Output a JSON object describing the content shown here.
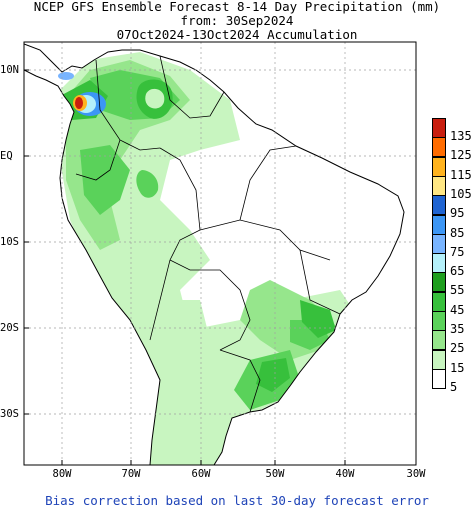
{
  "title": {
    "line1": "NCEP GFS Ensemble Forecast 8-14 Day Precipitation (mm)",
    "line2": "from: 30Sep2024",
    "line3": "07Oct2024-13Oct2024 Accumulation"
  },
  "latitude_labels": [
    "10N",
    "EQ",
    "10S",
    "20S",
    "30S"
  ],
  "longitude_labels": [
    "80W",
    "70W",
    "60W",
    "50W",
    "40W",
    "30W"
  ],
  "legend": {
    "labels": [
      "135",
      "125",
      "115",
      "105",
      "95",
      "85",
      "75",
      "65",
      "55",
      "45",
      "35",
      "25",
      "15",
      "5"
    ],
    "colors": [
      "#c81e0f",
      "#ff6c00",
      "#ffb31e",
      "#ffe784",
      "#1f64d2",
      "#3c96f5",
      "#78b4ff",
      "#b4f0fa",
      "#1e9e1e",
      "#37c03c",
      "#5ad25a",
      "#96e68c",
      "#c8f5c0",
      "#ffffff"
    ]
  },
  "footer": "Bias correction based on last 30-day forecast error"
}
